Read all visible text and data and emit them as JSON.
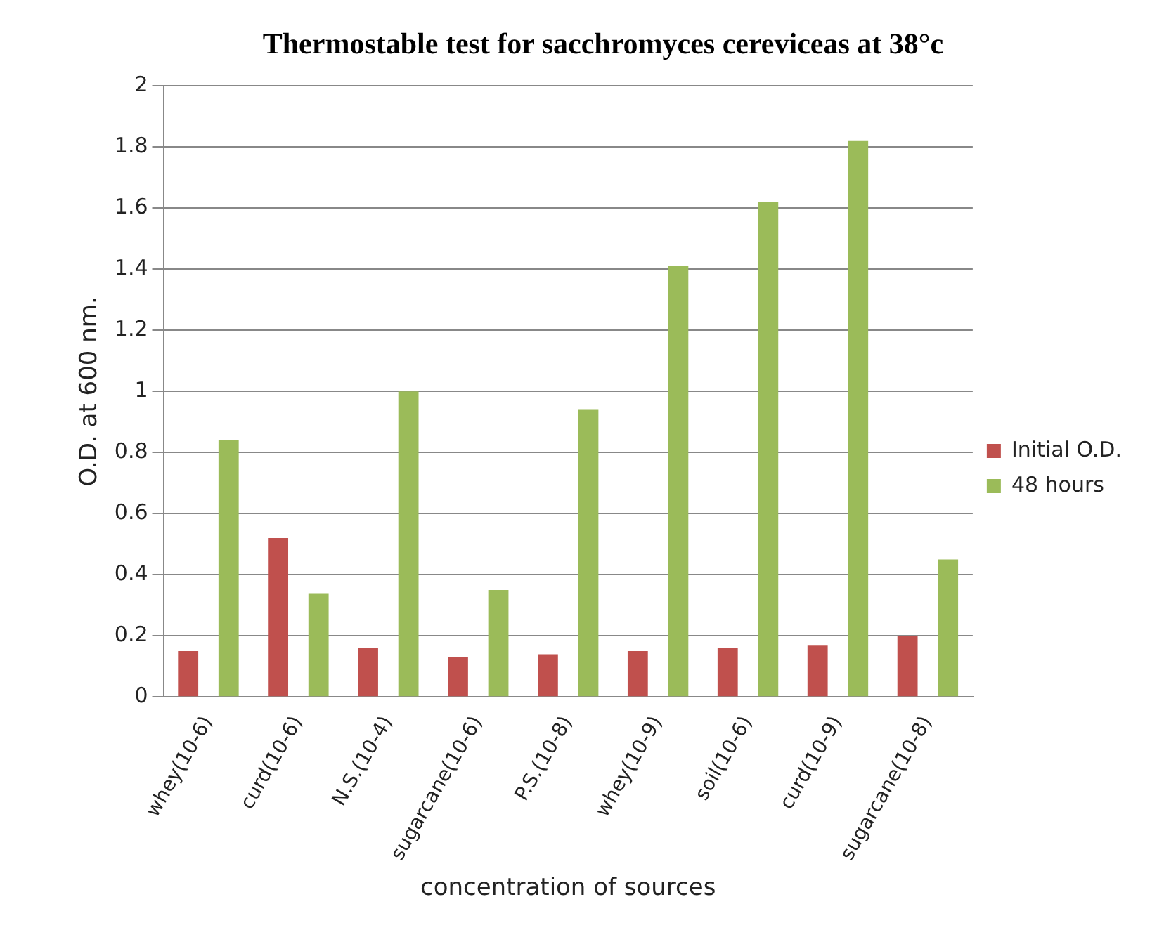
{
  "chart_data": {
    "type": "bar",
    "title": "Thermostable test for sacchromyces cereviceas at 38°c",
    "xlabel": "concentration of sources",
    "ylabel": "O.D. at 600 nm.",
    "categories": [
      "whey(10-6)",
      "curd(10-6)",
      "N.S.(10-4)",
      "sugarcane(10-6)",
      "P.S.(10-8)",
      "whey(10-9)",
      "soil(10-6)",
      "curd(10-9)",
      "sugarcane(10-8)"
    ],
    "series": [
      {
        "name": "Initial O.D.",
        "color": "#c0504d",
        "values": [
          0.15,
          0.52,
          0.16,
          0.13,
          0.14,
          0.15,
          0.16,
          0.17,
          0.2
        ]
      },
      {
        "name": "48 hours",
        "color": "#9bbb59",
        "values": [
          0.84,
          0.34,
          1.0,
          0.35,
          0.94,
          1.41,
          1.62,
          1.82,
          0.45
        ]
      }
    ],
    "ylim": [
      0,
      2
    ],
    "yticks": [
      0,
      0.2,
      0.4,
      0.6,
      0.8,
      1,
      1.2,
      1.4,
      1.6,
      1.8,
      2
    ],
    "grid": "y",
    "legend": "right"
  }
}
